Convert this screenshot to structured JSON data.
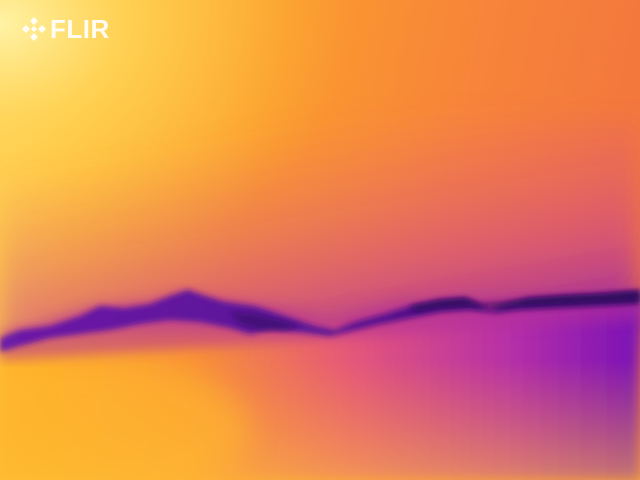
{
  "image": {
    "kind": "thermal camera image",
    "palette": "iron",
    "colors": {
      "hot": "#fff4a8",
      "warm": "#ffb52e",
      "mid": "#f78638",
      "cool": "#d53f8c",
      "cold": "#6a0fb3",
      "coldest": "#4a0d78"
    }
  },
  "logo": {
    "text": "FLIR",
    "icon": "flir-diamond-icon",
    "color": "#ffffff"
  }
}
